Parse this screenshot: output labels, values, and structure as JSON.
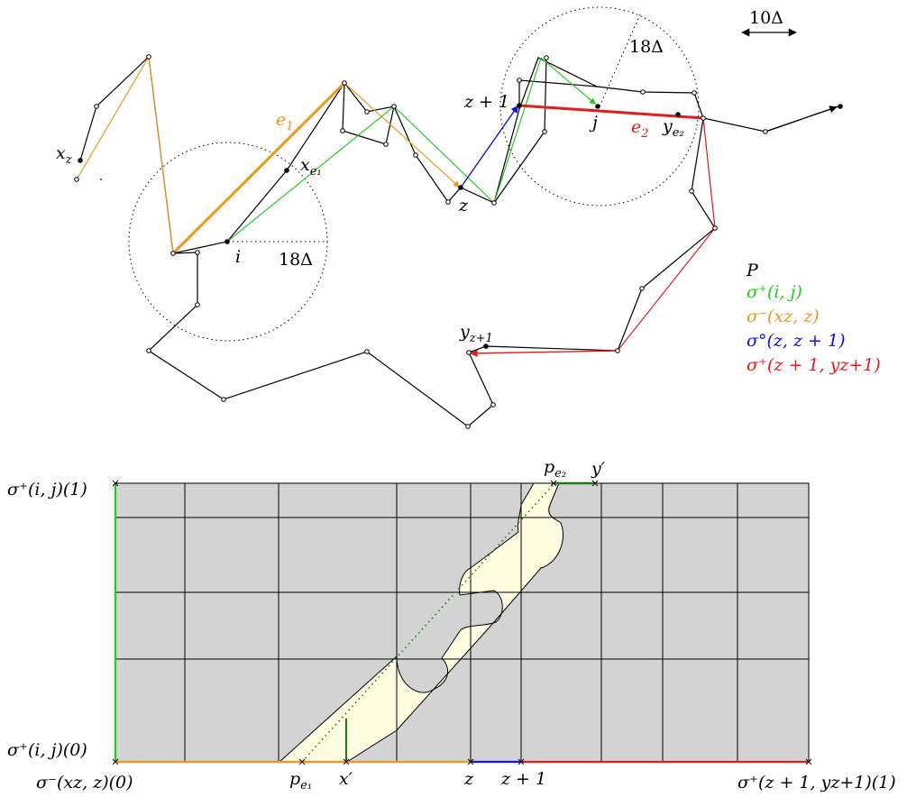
{
  "colors": {
    "path": "#000000",
    "green": "#22cc22",
    "orange": "#f0961e",
    "blue": "#1010e0",
    "red": "#e51b1b",
    "darkgreen": "#1a7a1a",
    "cell": "#d3d3d3",
    "blob": "#fffde0",
    "blob_stroke": "#000000"
  },
  "scale": {
    "label": "10Δ"
  },
  "top": {
    "radius_label_left": "18Δ",
    "radius_label_right": "18Δ",
    "labels": {
      "x_z": "x",
      "x_z_sub": "z",
      "e1": "e",
      "e1_sub": "1",
      "x_e1": "x",
      "x_e1_sub": "e₁",
      "i": "i",
      "z": "z",
      "z_plus_1": "z + 1",
      "j": "j",
      "e2": "e",
      "e2_sub": "2",
      "y_e2": "y",
      "y_e2_sub": "e₂",
      "y_z1": "y",
      "y_z1_sub": "z+1"
    }
  },
  "legend": {
    "title": "P",
    "items": [
      {
        "text": "σ⁺(i, j)",
        "color": "green"
      },
      {
        "text": "σ⁻(xz, z)",
        "color": "orange"
      },
      {
        "text": "σ°(z, z + 1)",
        "color": "blue"
      },
      {
        "text": "σ⁺(z + 1, yz+1)",
        "color": "red"
      }
    ]
  },
  "bottom": {
    "y_top_label": "σ⁺(i, j)(1)",
    "y_bottom_label": "σ⁺(i, j)(0)",
    "x_left_label": "σ⁻(xz, z)(0)",
    "x_right_label": "σ⁺(z + 1, yz+1)(1)",
    "ticks": {
      "p_e1": "p",
      "p_e1_sub": "e₁",
      "x_prime": "x′",
      "z": "z",
      "z_plus_1": "z + 1",
      "p_e2": "p",
      "p_e2_sub": "e₂",
      "y_prime": "y′"
    }
  }
}
